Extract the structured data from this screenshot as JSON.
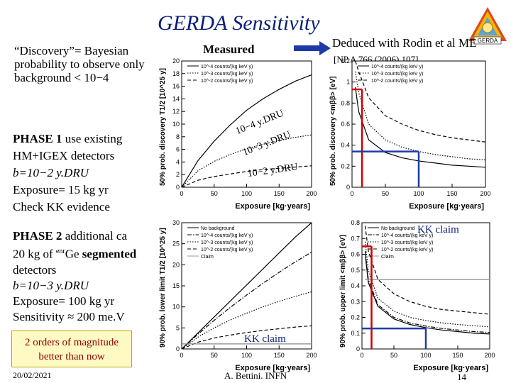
{
  "title": "GERDA Sensitivity",
  "discovery_text": "“Discovery”= Bayesian probability to observe only background < 10−4",
  "phase1": {
    "heading": "PHASE 1",
    "line1": "use existing HM+IGEX detectors",
    "line2": "b=10−2 y.DRU",
    "line3": "Exposure= 15 kg yr",
    "line4": "Check KK evidence"
  },
  "phase2": {
    "line1a": "PHASE 2",
    "line1b": "additional ca",
    "line2a": "20 kg of",
    "line2sup": "enr",
    "line2b": "Ge",
    "line2c": "segmented",
    "line3": "detectors",
    "line4": "b=10−3 y.DRU",
    "line5": "Exposure= 100 kg yr",
    "line6": "Sensitivity ≈ 200 me.V"
  },
  "measured_label": "Measured",
  "deduced_label": "Deduced with Rodin et al ME",
  "reference": "[NP A 766 (2006) 107]",
  "annotations": [
    "10−4 y.DRU",
    "10−3 y.DRU",
    "10−2 y.DRU"
  ],
  "kk_claim": "KK claim",
  "highlight_box": "2 orders of magnitude better than now",
  "date": "20/02/2021",
  "footer": "A. Bettini. INFN",
  "page_number": "14",
  "logo_text": "GERDA",
  "chart_data": [
    {
      "type": "line",
      "title": "",
      "xlabel": "Exposure [kg·years]",
      "ylabel": "50% prob. discovery T1/2 [10^25 y]",
      "xlim": [
        0,
        200
      ],
      "ylim": [
        0,
        20
      ],
      "xticks": [
        "0",
        "50",
        "100",
        "150",
        "200"
      ],
      "yticks": [
        "0",
        "2",
        "4",
        "6",
        "8",
        "10",
        "12",
        "14",
        "16",
        "18",
        "20"
      ],
      "legend": [
        "10^-4 counts/(kg keV y)",
        "10^-3 counts/(kg keV y)",
        "10^-2 counts/(kg keV y)"
      ],
      "x": [
        0,
        25,
        50,
        75,
        100,
        125,
        150,
        175,
        200
      ],
      "series": [
        {
          "name": "10^-4 counts/(kg keV y)",
          "style": "solid",
          "values": [
            0,
            4.2,
            7.3,
            9.9,
            12.2,
            14.0,
            15.5,
            16.8,
            17.8
          ]
        },
        {
          "name": "10^-3 counts/(kg keV y)",
          "style": "dotted",
          "values": [
            0,
            2.6,
            4.1,
            5.2,
            6.1,
            6.8,
            7.4,
            7.9,
            8.3
          ]
        },
        {
          "name": "10^-2 counts/(kg keV y)",
          "style": "dashed",
          "values": [
            0,
            1.1,
            1.7,
            2.1,
            2.5,
            2.8,
            3.0,
            3.2,
            3.4
          ]
        }
      ]
    },
    {
      "type": "line",
      "title": "",
      "xlabel": "Exposure [kg·years]",
      "ylabel": "50% prob. discovery <mββ> [eV]",
      "xlim": [
        0,
        200
      ],
      "ylim": [
        0,
        1.2
      ],
      "xticks": [
        "0",
        "50",
        "100",
        "150",
        "200"
      ],
      "yticks": [
        "0",
        "0.2",
        "0.4",
        "0.6",
        "0.8",
        "1",
        "1.2"
      ],
      "legend": [
        "10^-4 counts/(kg keV y)",
        "10^-3 counts/(kg keV y)",
        "10^-2 counts/(kg keV y)"
      ],
      "x": [
        5,
        10,
        25,
        50,
        75,
        100,
        125,
        150,
        175,
        200
      ],
      "series": [
        {
          "name": "10^-4 counts/(kg keV y)",
          "style": "solid",
          "values": [
            0.95,
            0.72,
            0.45,
            0.33,
            0.28,
            0.25,
            0.23,
            0.21,
            0.2,
            0.19
          ]
        },
        {
          "name": "10^-3 counts/(kg keV y)",
          "style": "dotted",
          "values": [
            1.1,
            0.9,
            0.6,
            0.45,
            0.38,
            0.34,
            0.31,
            0.29,
            0.27,
            0.26
          ]
        },
        {
          "name": "10^-2 counts/(kg keV y)",
          "style": "dashed",
          "values": [
            1.2,
            1.1,
            0.85,
            0.68,
            0.6,
            0.54,
            0.5,
            0.47,
            0.45,
            0.43
          ]
        }
      ],
      "markers": {
        "phase1_exposure": 15,
        "phase1_value": 0.93,
        "phase2_exposure": 100,
        "phase2_value": 0.34
      }
    },
    {
      "type": "line",
      "title": "",
      "xlabel": "Exposure [kg·years]",
      "ylabel": "90% prob. lower limit T1/2 [10^25 y]",
      "xlim": [
        0,
        200
      ],
      "ylim": [
        0,
        30
      ],
      "xticks": [
        "0",
        "50",
        "100",
        "150",
        "200"
      ],
      "yticks": [
        "0",
        "5",
        "10",
        "15",
        "20",
        "25",
        "30"
      ],
      "legend": [
        "No background",
        "10^-4 counts/(kg keV y)",
        "10^-3 counts/(kg keV y)",
        "10^-2 counts/(kg keV y)",
        "Claim"
      ],
      "x": [
        0,
        25,
        50,
        75,
        100,
        125,
        150,
        175,
        200
      ],
      "series": [
        {
          "name": "No background",
          "style": "solid",
          "values": [
            0,
            3.8,
            7.6,
            11.4,
            15.2,
            19.0,
            22.8,
            26.6,
            30.0
          ]
        },
        {
          "name": "10^-4 counts/(kg keV y)",
          "style": "dashdot",
          "values": [
            0,
            3.5,
            6.8,
            9.9,
            12.8,
            15.6,
            18.2,
            20.7,
            23.0
          ]
        },
        {
          "name": "10^-3 counts/(kg keV y)",
          "style": "dotted",
          "values": [
            0,
            2.8,
            5.0,
            6.9,
            8.5,
            10.0,
            11.3,
            12.5,
            13.6
          ]
        },
        {
          "name": "10^-2 counts/(kg keV y)",
          "style": "dashed",
          "values": [
            0,
            1.6,
            2.6,
            3.3,
            3.9,
            4.4,
            4.8,
            5.2,
            5.5
          ]
        },
        {
          "name": "Claim",
          "style": "solid-gray",
          "values": [
            1.2,
            1.2,
            1.2,
            1.2,
            1.2,
            1.2,
            1.2,
            1.2,
            1.2
          ]
        }
      ]
    },
    {
      "type": "line",
      "title": "",
      "xlabel": "Exposure [kg·years]",
      "ylabel": "90% prob. upper limit <mββ> [eV]",
      "xlim": [
        0,
        200
      ],
      "ylim": [
        0,
        0.8
      ],
      "xticks": [
        "0",
        "50",
        "100",
        "150",
        "200"
      ],
      "yticks": [
        "0",
        "0.1",
        "0.2",
        "0.3",
        "0.4",
        "0.5",
        "0.6",
        "0.7",
        "0.8"
      ],
      "legend": [
        "No background",
        "10^-4 counts/(kg keV y)",
        "10^-3 counts/(kg keV y)",
        "10^-2 counts/(kg keV y)",
        "Claim"
      ],
      "x": [
        5,
        10,
        25,
        50,
        75,
        100,
        125,
        150,
        175,
        200
      ],
      "series": [
        {
          "name": "No background",
          "style": "solid",
          "values": [
            0.6,
            0.42,
            0.27,
            0.19,
            0.155,
            0.135,
            0.12,
            0.11,
            0.1,
            0.095
          ]
        },
        {
          "name": "10^-4 counts/(kg keV y)",
          "style": "dashdot",
          "values": [
            0.62,
            0.44,
            0.28,
            0.2,
            0.165,
            0.145,
            0.13,
            0.12,
            0.11,
            0.105
          ]
        },
        {
          "name": "10^-3 counts/(kg keV y)",
          "style": "dotted",
          "values": [
            0.68,
            0.5,
            0.32,
            0.24,
            0.2,
            0.18,
            0.165,
            0.155,
            0.147,
            0.14
          ]
        },
        {
          "name": "10^-2 counts/(kg keV y)",
          "style": "dashed",
          "values": [
            0.78,
            0.62,
            0.44,
            0.35,
            0.3,
            0.27,
            0.25,
            0.24,
            0.23,
            0.22
          ]
        },
        {
          "name": "Claim",
          "style": "solid-gray",
          "values": [
            0.44,
            0.44,
            0.44,
            0.44,
            0.44,
            0.44,
            0.44,
            0.44,
            0.44,
            0.44
          ]
        }
      ],
      "markers": {
        "phase1_exposure": 15,
        "phase1_value": 0.65,
        "phase2_exposure": 100,
        "phase2_value": 0.13
      }
    }
  ]
}
